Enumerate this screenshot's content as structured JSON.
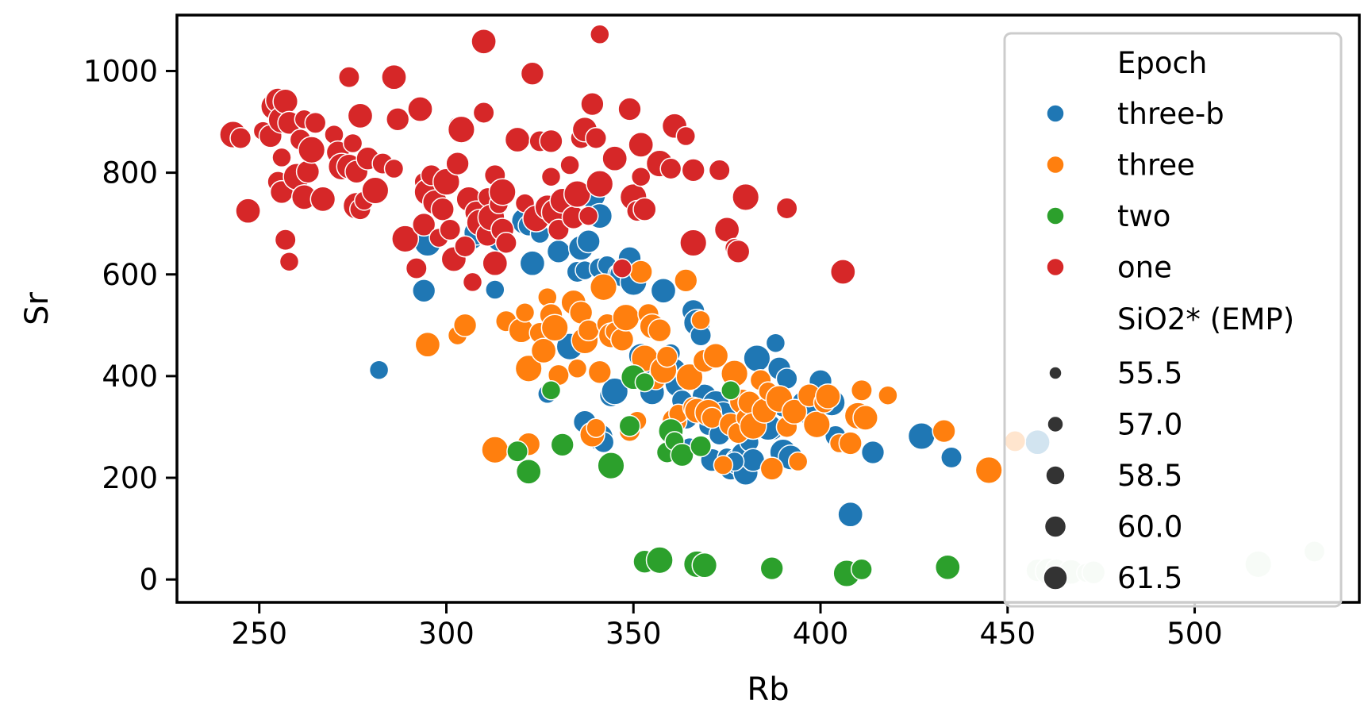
{
  "chart_data": {
    "type": "scatter",
    "title": "",
    "xlabel": "Rb",
    "ylabel": "Sr",
    "xlim": [
      228,
      544
    ],
    "ylim": [
      -45,
      1110
    ],
    "xticks": [
      250,
      300,
      350,
      400,
      450,
      500
    ],
    "yticks": [
      0,
      200,
      400,
      600,
      800,
      1000
    ],
    "hue_title": "Epoch",
    "size_title": "SiO2* (EMP)",
    "legend_position": "top-right",
    "grid": false,
    "series": [
      {
        "name": "three-b",
        "color": "#1f77b4",
        "points": [
          [
            282,
            412
          ],
          [
            294,
            568
          ],
          [
            295,
            662
          ],
          [
            307,
            670
          ],
          [
            308,
            682
          ],
          [
            313,
            570
          ],
          [
            314,
            668
          ],
          [
            321,
            705
          ],
          [
            322,
            696
          ],
          [
            323,
            622
          ],
          [
            325,
            680
          ],
          [
            330,
            645
          ],
          [
            333,
            458
          ],
          [
            335,
            605
          ],
          [
            336,
            652
          ],
          [
            337,
            608
          ],
          [
            338,
            665
          ],
          [
            339,
            756
          ],
          [
            341,
            612
          ],
          [
            341,
            715
          ],
          [
            343,
            618
          ],
          [
            344,
            362
          ],
          [
            345,
            370
          ],
          [
            346,
            600
          ],
          [
            347,
            600
          ],
          [
            348,
            615
          ],
          [
            349,
            632
          ],
          [
            350,
            585
          ],
          [
            351,
            410
          ],
          [
            352,
            440
          ],
          [
            353,
            390
          ],
          [
            355,
            425
          ],
          [
            356,
            420
          ],
          [
            357,
            400
          ],
          [
            358,
            568
          ],
          [
            360,
            445
          ],
          [
            361,
            412
          ],
          [
            362,
            385
          ],
          [
            363,
            352
          ],
          [
            364,
            320
          ],
          [
            365,
            260
          ],
          [
            366,
            528
          ],
          [
            367,
            505
          ],
          [
            368,
            480
          ],
          [
            369,
            360
          ],
          [
            370,
            302
          ],
          [
            371,
            235
          ],
          [
            372,
            345
          ],
          [
            373,
            285
          ],
          [
            374,
            325
          ],
          [
            375,
            240
          ],
          [
            376,
            218
          ],
          [
            378,
            232
          ],
          [
            379,
            248
          ],
          [
            380,
            210
          ],
          [
            381,
            270
          ],
          [
            382,
            235
          ],
          [
            383,
            435
          ],
          [
            386,
            370
          ],
          [
            387,
            298
          ],
          [
            388,
            465
          ],
          [
            389,
            415
          ],
          [
            390,
            250
          ],
          [
            391,
            395
          ],
          [
            392,
            240
          ],
          [
            395,
            350
          ],
          [
            400,
            390
          ],
          [
            403,
            348
          ],
          [
            404,
            282
          ],
          [
            408,
            128
          ],
          [
            411,
            318
          ],
          [
            414,
            250
          ],
          [
            427,
            282
          ],
          [
            435,
            240
          ],
          [
            458,
            270
          ],
          [
            327,
            365
          ],
          [
            337,
            310
          ],
          [
            341,
            280
          ],
          [
            342,
            270
          ],
          [
            355,
            368
          ],
          [
            377,
            232
          ],
          [
            384,
            305
          ],
          [
            386,
            300
          ],
          [
            390,
            340
          ],
          [
            398,
            320
          ]
        ]
      },
      {
        "name": "three",
        "color": "#ff7f0e",
        "points": [
          [
            295,
            462
          ],
          [
            303,
            480
          ],
          [
            305,
            500
          ],
          [
            313,
            255
          ],
          [
            316,
            508
          ],
          [
            320,
            490
          ],
          [
            321,
            525
          ],
          [
            322,
            266
          ],
          [
            322,
            415
          ],
          [
            325,
            485
          ],
          [
            326,
            450
          ],
          [
            327,
            555
          ],
          [
            328,
            520
          ],
          [
            329,
            495
          ],
          [
            330,
            402
          ],
          [
            334,
            545
          ],
          [
            335,
            415
          ],
          [
            336,
            525
          ],
          [
            337,
            470
          ],
          [
            338,
            490
          ],
          [
            339,
            285
          ],
          [
            340,
            298
          ],
          [
            341,
            408
          ],
          [
            342,
            575
          ],
          [
            343,
            502
          ],
          [
            344,
            480
          ],
          [
            345,
            488
          ],
          [
            347,
            472
          ],
          [
            348,
            515
          ],
          [
            349,
            292
          ],
          [
            350,
            400
          ],
          [
            351,
            312
          ],
          [
            352,
            605
          ],
          [
            353,
            435
          ],
          [
            354,
            522
          ],
          [
            355,
            498
          ],
          [
            356,
            392
          ],
          [
            357,
            490
          ],
          [
            358,
            412
          ],
          [
            359,
            438
          ],
          [
            361,
            312
          ],
          [
            362,
            326
          ],
          [
            364,
            588
          ],
          [
            365,
            398
          ],
          [
            366,
            338
          ],
          [
            367,
            332
          ],
          [
            368,
            510
          ],
          [
            369,
            430
          ],
          [
            370,
            328
          ],
          [
            371,
            318
          ],
          [
            372,
            440
          ],
          [
            374,
            225
          ],
          [
            376,
            305
          ],
          [
            377,
            405
          ],
          [
            378,
            288
          ],
          [
            379,
            350
          ],
          [
            380,
            318
          ],
          [
            381,
            348
          ],
          [
            382,
            302
          ],
          [
            384,
            392
          ],
          [
            385,
            332
          ],
          [
            386,
            370
          ],
          [
            387,
            218
          ],
          [
            389,
            355
          ],
          [
            391,
            300
          ],
          [
            393,
            330
          ],
          [
            394,
            232
          ],
          [
            397,
            362
          ],
          [
            399,
            305
          ],
          [
            401,
            348
          ],
          [
            402,
            360
          ],
          [
            405,
            268
          ],
          [
            408,
            268
          ],
          [
            410,
            322
          ],
          [
            411,
            372
          ],
          [
            412,
            318
          ],
          [
            418,
            362
          ],
          [
            433,
            292
          ],
          [
            445,
            215
          ],
          [
            452,
            272
          ]
        ]
      },
      {
        "name": "two",
        "color": "#2ca02c",
        "points": [
          [
            319,
            252
          ],
          [
            322,
            212
          ],
          [
            328,
            372
          ],
          [
            331,
            265
          ],
          [
            344,
            224
          ],
          [
            349,
            302
          ],
          [
            350,
            398
          ],
          [
            353,
            388
          ],
          [
            353,
            35
          ],
          [
            357,
            38
          ],
          [
            359,
            250
          ],
          [
            360,
            292
          ],
          [
            361,
            272
          ],
          [
            363,
            245
          ],
          [
            367,
            30
          ],
          [
            368,
            262
          ],
          [
            369,
            28
          ],
          [
            376,
            372
          ],
          [
            387,
            22
          ],
          [
            407,
            12
          ],
          [
            411,
            20
          ],
          [
            434,
            24
          ]
        ]
      },
      {
        "name": "one",
        "color": "#d62728",
        "points": [
          [
            243,
            875
          ],
          [
            245,
            868
          ],
          [
            247,
            725
          ],
          [
            251,
            882
          ],
          [
            253,
            872
          ],
          [
            254,
            930
          ],
          [
            255,
            782
          ],
          [
            255,
            942
          ],
          [
            256,
            830
          ],
          [
            256,
            762
          ],
          [
            256,
            904
          ],
          [
            257,
            668
          ],
          [
            257,
            940
          ],
          [
            258,
            625
          ],
          [
            258,
            898
          ],
          [
            260,
            792
          ],
          [
            261,
            865
          ],
          [
            262,
            752
          ],
          [
            262,
            905
          ],
          [
            263,
            802
          ],
          [
            264,
            845
          ],
          [
            265,
            898
          ],
          [
            267,
            748
          ],
          [
            270,
            875
          ],
          [
            271,
            840
          ],
          [
            272,
            812
          ],
          [
            274,
            988
          ],
          [
            274,
            812
          ],
          [
            275,
            858
          ],
          [
            276,
            802
          ],
          [
            276,
            735
          ],
          [
            277,
            728
          ],
          [
            277,
            912
          ],
          [
            278,
            745
          ],
          [
            279,
            828
          ],
          [
            281,
            765
          ],
          [
            283,
            818
          ],
          [
            286,
            988
          ],
          [
            286,
            808
          ],
          [
            287,
            905
          ],
          [
            289,
            670
          ],
          [
            292,
            612
          ],
          [
            293,
            925
          ],
          [
            294,
            782
          ],
          [
            294,
            698
          ],
          [
            295,
            762
          ],
          [
            296,
            795
          ],
          [
            297,
            742
          ],
          [
            298,
            672
          ],
          [
            299,
            728
          ],
          [
            300,
            782
          ],
          [
            301,
            688
          ],
          [
            302,
            630
          ],
          [
            303,
            892
          ],
          [
            303,
            818
          ],
          [
            304,
            885
          ],
          [
            305,
            655
          ],
          [
            306,
            748
          ],
          [
            307,
            585
          ],
          [
            308,
            722
          ],
          [
            309,
            702
          ],
          [
            310,
            918
          ],
          [
            310,
            1058
          ],
          [
            311,
            752
          ],
          [
            311,
            678
          ],
          [
            312,
            712
          ],
          [
            313,
            795
          ],
          [
            313,
            622
          ],
          [
            314,
            738
          ],
          [
            315,
            688
          ],
          [
            315,
            762
          ],
          [
            316,
            662
          ],
          [
            319,
            865
          ],
          [
            321,
            740
          ],
          [
            323,
            995
          ],
          [
            324,
            710
          ],
          [
            325,
            862
          ],
          [
            327,
            732
          ],
          [
            328,
            792
          ],
          [
            328,
            862
          ],
          [
            329,
            722
          ],
          [
            330,
            688
          ],
          [
            331,
            745
          ],
          [
            333,
            815
          ],
          [
            334,
            712
          ],
          [
            335,
            758
          ],
          [
            336,
            868
          ],
          [
            337,
            885
          ],
          [
            338,
            715
          ],
          [
            339,
            935
          ],
          [
            341,
            778
          ],
          [
            340,
            868
          ],
          [
            345,
            828
          ],
          [
            347,
            612
          ],
          [
            349,
            925
          ],
          [
            350,
            752
          ],
          [
            351,
            725
          ],
          [
            352,
            855
          ],
          [
            352,
            792
          ],
          [
            353,
            728
          ],
          [
            357,
            818
          ],
          [
            360,
            808
          ],
          [
            361,
            892
          ],
          [
            364,
            872
          ],
          [
            366,
            805
          ],
          [
            366,
            662
          ],
          [
            373,
            805
          ],
          [
            375,
            688
          ],
          [
            377,
            652
          ],
          [
            378,
            645
          ],
          [
            380,
            752
          ],
          [
            391,
            730
          ],
          [
            406,
            605
          ],
          [
            341,
            1072
          ]
        ]
      },
      {
        "name": "",
        "color": "#d8ecd8",
        "points": [
          [
            458,
            18
          ],
          [
            461,
            16
          ],
          [
            463,
            20
          ],
          [
            467,
            15
          ],
          [
            471,
            13
          ],
          [
            473,
            14
          ],
          [
            517,
            30
          ],
          [
            532,
            55
          ]
        ]
      }
    ],
    "size_legend": [
      "55.5",
      "57.0",
      "58.5",
      "60.0",
      "61.5"
    ]
  }
}
